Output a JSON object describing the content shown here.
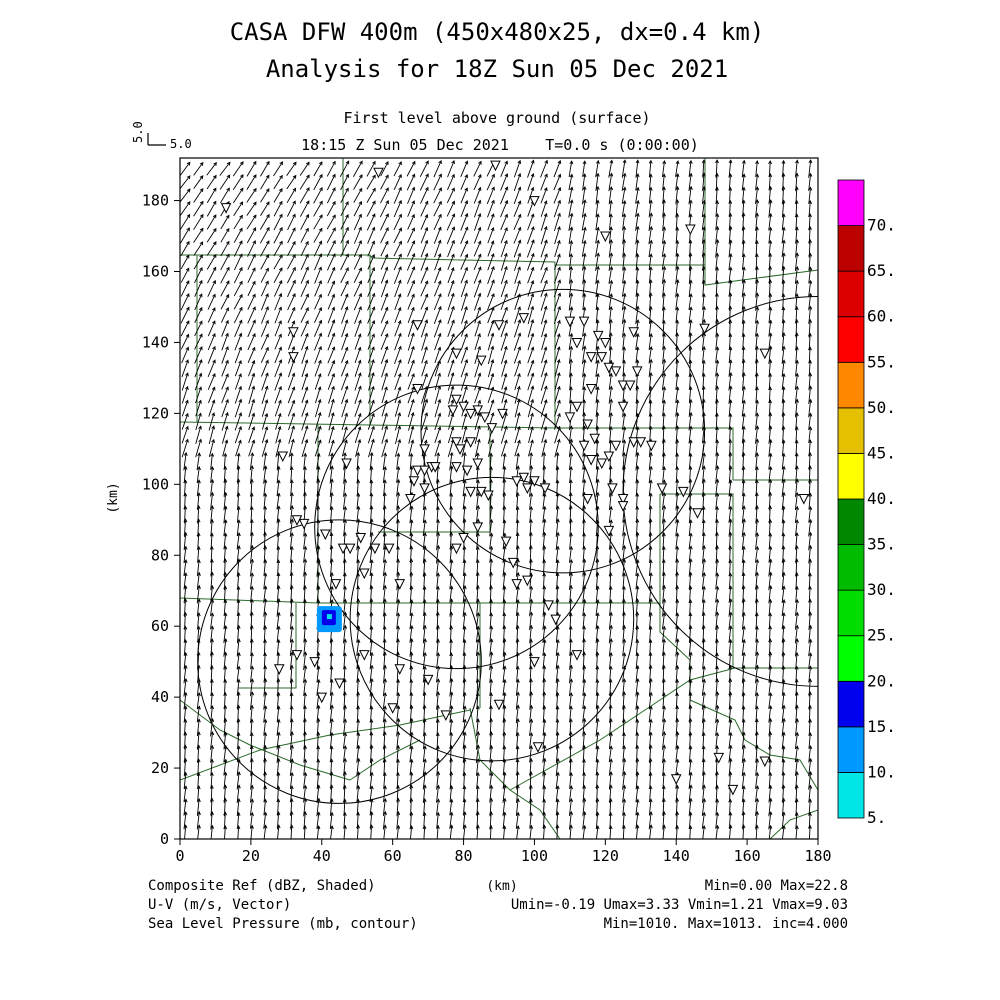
{
  "chart_data": {
    "type": "map",
    "title": "CASA DFW 400m (450x480x25, dx=0.4 km)",
    "subtitle": "Analysis for 18Z Sun 05 Dec 2021",
    "level_label": "First level above ground (surface)",
    "time_label": "18:15 Z Sun 05 Dec 2021",
    "elapsed_label": "T=0.0 s (0:00:00)",
    "reference_vector": {
      "label": "5.0",
      "value": 5.0
    },
    "xlabel": "(km)",
    "ylabel": "(km)",
    "xlim": [
      0,
      180
    ],
    "ylim": [
      0,
      192
    ],
    "xticks": [
      0,
      20,
      40,
      60,
      80,
      100,
      120,
      140,
      160,
      180
    ],
    "yticks": [
      0,
      20,
      40,
      60,
      80,
      100,
      120,
      140,
      160,
      180
    ],
    "colorbar": {
      "levels": [
        "5.",
        "10.",
        "15.",
        "20.",
        "25.",
        "30.",
        "35.",
        "40.",
        "45.",
        "50.",
        "55.",
        "60.",
        "65.",
        "70."
      ],
      "colors": [
        "#00e5e5",
        "#0099ff",
        "#0000ee",
        "#00ff00",
        "#00dd00",
        "#00bb00",
        "#008800",
        "#ffff00",
        "#e5c000",
        "#ff8800",
        "#ff0000",
        "#dd0000",
        "#bb0000",
        "#ff00ff"
      ]
    },
    "fields": [
      {
        "name": "Composite Ref (dBZ, Shaded)",
        "stats": "Min=0.00 Max=22.8"
      },
      {
        "name": "U-V (m/s, Vector)",
        "stats": "Umin=-0.19 Umax=3.33 Vmin=1.21 Vmax=9.03"
      },
      {
        "name": "Sea Level Pressure (mb, contour)",
        "stats": "Min=1010. Max=1013. inc=4.000"
      }
    ],
    "radar_rings": [
      {
        "x": 108,
        "y": 115,
        "r": 40
      },
      {
        "x": 78,
        "y": 88,
        "r": 40
      },
      {
        "x": 88,
        "y": 62,
        "r": 40
      },
      {
        "x": 45,
        "y": 50,
        "r": 40
      },
      {
        "x": 180,
        "y": 98,
        "r": 55
      }
    ],
    "reflectivity_echo": {
      "x": 42,
      "y": 62,
      "max_dbz": 22.8
    },
    "station_markers": [
      [
        56,
        188
      ],
      [
        89,
        190
      ],
      [
        100,
        180
      ],
      [
        13,
        178
      ],
      [
        120,
        170
      ],
      [
        144,
        172
      ],
      [
        67,
        145
      ],
      [
        32,
        143
      ],
      [
        32,
        136
      ],
      [
        90,
        145
      ],
      [
        97,
        147
      ],
      [
        110,
        146
      ],
      [
        114,
        146
      ],
      [
        118,
        142
      ],
      [
        112,
        140
      ],
      [
        120,
        140
      ],
      [
        128,
        143
      ],
      [
        116,
        136
      ],
      [
        119,
        136
      ],
      [
        121,
        133
      ],
      [
        123,
        132
      ],
      [
        125,
        128
      ],
      [
        127,
        128
      ],
      [
        125,
        122
      ],
      [
        116,
        127
      ],
      [
        129,
        132
      ],
      [
        78,
        137
      ],
      [
        85,
        135
      ],
      [
        67,
        127
      ],
      [
        78,
        124
      ],
      [
        80,
        122
      ],
      [
        77,
        121
      ],
      [
        84,
        121
      ],
      [
        82,
        120
      ],
      [
        86,
        119
      ],
      [
        91,
        120
      ],
      [
        88,
        116
      ],
      [
        110,
        119
      ],
      [
        115,
        117
      ],
      [
        112,
        122
      ],
      [
        148,
        144
      ],
      [
        165,
        137
      ],
      [
        114,
        111
      ],
      [
        117,
        113
      ],
      [
        116,
        107
      ],
      [
        119,
        106
      ],
      [
        123,
        111
      ],
      [
        121,
        108
      ],
      [
        128,
        112
      ],
      [
        130,
        112
      ],
      [
        133,
        111
      ],
      [
        69,
        110
      ],
      [
        71,
        105
      ],
      [
        72,
        105
      ],
      [
        78,
        112
      ],
      [
        82,
        112
      ],
      [
        79,
        110
      ],
      [
        81,
        104
      ],
      [
        78,
        105
      ],
      [
        84,
        106
      ],
      [
        67,
        104
      ],
      [
        69,
        104
      ],
      [
        66,
        101
      ],
      [
        69,
        99
      ],
      [
        65,
        96
      ],
      [
        85,
        98
      ],
      [
        87,
        97
      ],
      [
        97,
        102
      ],
      [
        95,
        101
      ],
      [
        98,
        99
      ],
      [
        103,
        99
      ],
      [
        100,
        101
      ],
      [
        82,
        98
      ],
      [
        115,
        96
      ],
      [
        122,
        99
      ],
      [
        125,
        96
      ],
      [
        125,
        94
      ],
      [
        136,
        99
      ],
      [
        142,
        98
      ],
      [
        146,
        92
      ],
      [
        121,
        87
      ],
      [
        47,
        106
      ],
      [
        29,
        108
      ],
      [
        33,
        90
      ],
      [
        35,
        89
      ],
      [
        41,
        86
      ],
      [
        46,
        82
      ],
      [
        51,
        85
      ],
      [
        48,
        82
      ],
      [
        55,
        82
      ],
      [
        59,
        82
      ],
      [
        44,
        72
      ],
      [
        52,
        75
      ],
      [
        62,
        72
      ],
      [
        78,
        82
      ],
      [
        80,
        85
      ],
      [
        84,
        88
      ],
      [
        92,
        84
      ],
      [
        94,
        78
      ],
      [
        98,
        73
      ],
      [
        95,
        72
      ],
      [
        104,
        66
      ],
      [
        106,
        62
      ],
      [
        112,
        52
      ],
      [
        100,
        50
      ],
      [
        62,
        48
      ],
      [
        70,
        45
      ],
      [
        52,
        52
      ],
      [
        45,
        44
      ],
      [
        38,
        50
      ],
      [
        28,
        48
      ],
      [
        33,
        52
      ],
      [
        40,
        40
      ],
      [
        60,
        37
      ],
      [
        75,
        35
      ],
      [
        90,
        38
      ],
      [
        101,
        26
      ],
      [
        140,
        17
      ],
      [
        152,
        23
      ],
      [
        165,
        22
      ],
      [
        176,
        96
      ],
      [
        156,
        14
      ]
    ]
  }
}
